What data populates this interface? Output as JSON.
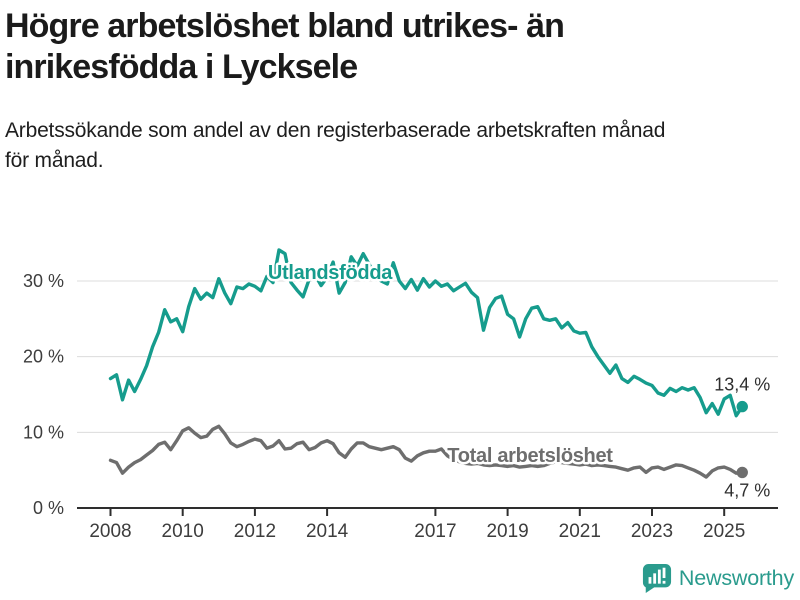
{
  "header": {
    "title_lines": [
      "Högre arbetslöshet bland utrikes- än",
      "inrikesfödda i Lycksele"
    ],
    "subtitle_lines": [
      "Arbetssökande som andel av den registerbaserade arbetskraften månad",
      "för månad."
    ]
  },
  "chart_data": {
    "type": "line",
    "title": "Högre arbetslöshet bland utrikes- än inrikesfödda i Lycksele",
    "subtitle": "Arbetssökande som andel av den registerbaserade arbetskraften månad för månad.",
    "unit": "percent",
    "grid": "horizontal",
    "legend_position": "inline-labels",
    "x_start_year": 2008,
    "x_step_years": 0.1666667,
    "x_end_year": 2025.5,
    "x_tick_years": [
      2008,
      2010,
      2012,
      2014,
      2017,
      2019,
      2021,
      2023,
      2025
    ],
    "x_tick_labels": [
      "2008",
      "2010",
      "2012",
      "2014",
      "2017",
      "2019",
      "2021",
      "2023",
      "2025"
    ],
    "y_ticks": [
      0,
      10,
      20,
      30
    ],
    "y_tick_labels": [
      "0 %",
      "10 %",
      "20 %",
      "30 %"
    ],
    "ylim": [
      0,
      35
    ],
    "colors": {
      "axis": "#2e2e2e",
      "gridline": "#dcdcdc",
      "tick_text": "#3d3d3d",
      "value_text": "#2e2e2e"
    },
    "series": [
      {
        "name": "Utlandsfödda",
        "color": "#169c8d",
        "end_label": "13,4 %",
        "end_value": 13.4,
        "end_label_position": "above",
        "label_at": {
          "year": 2014.08,
          "value": 31.2
        },
        "values": [
          17.1,
          17.6,
          14.3,
          16.9,
          15.4,
          17.0,
          18.8,
          21.3,
          23.2,
          26.2,
          24.6,
          25.0,
          23.3,
          26.6,
          29.0,
          27.6,
          28.4,
          27.8,
          30.3,
          28.4,
          27.0,
          29.2,
          29.0,
          29.6,
          29.3,
          28.7,
          30.6,
          29.8,
          34.1,
          33.6,
          29.8,
          28.8,
          27.9,
          30.2,
          30.8,
          29.4,
          30.5,
          32.5,
          28.4,
          29.8,
          33.2,
          32.0,
          33.6,
          32.2,
          30.6,
          30.0,
          29.6,
          32.4,
          30.0,
          29.0,
          30.2,
          28.8,
          30.3,
          29.2,
          30.0,
          29.3,
          29.6,
          28.7,
          29.2,
          29.7,
          28.5,
          27.8,
          23.5,
          26.5,
          27.7,
          28.0,
          25.6,
          25.0,
          22.6,
          25.0,
          26.4,
          26.6,
          25.0,
          24.8,
          25.0,
          23.8,
          24.5,
          23.4,
          23.1,
          23.2,
          21.3,
          20.0,
          18.9,
          17.8,
          18.9,
          17.1,
          16.6,
          17.4,
          17.0,
          16.5,
          16.2,
          15.2,
          14.9,
          15.8,
          15.4,
          15.9,
          15.6,
          15.9,
          14.6,
          12.6,
          13.8,
          12.4,
          14.4,
          14.9,
          12.2,
          13.4
        ]
      },
      {
        "name": "Total arbetslöshet",
        "color": "#6e6e6e",
        "end_label": "4,7 %",
        "end_value": 4.7,
        "end_label_position": "below",
        "label_at": {
          "year": 2019.62,
          "value": 7.0
        },
        "values": [
          6.3,
          6.0,
          4.6,
          5.4,
          6.0,
          6.4,
          7.0,
          7.6,
          8.4,
          8.7,
          7.7,
          8.9,
          10.2,
          10.6,
          9.9,
          9.3,
          9.5,
          10.4,
          10.8,
          9.8,
          8.6,
          8.1,
          8.4,
          8.8,
          9.1,
          8.9,
          7.9,
          8.2,
          8.9,
          7.8,
          7.9,
          8.5,
          8.7,
          7.7,
          8.0,
          8.6,
          8.9,
          8.5,
          7.3,
          6.7,
          7.8,
          8.6,
          8.6,
          8.1,
          7.9,
          7.7,
          7.9,
          8.1,
          7.7,
          6.6,
          6.2,
          6.9,
          7.3,
          7.5,
          7.5,
          7.8,
          6.9,
          6.4,
          6.1,
          5.9,
          5.8,
          5.9,
          5.7,
          5.6,
          5.7,
          5.6,
          5.5,
          5.6,
          5.4,
          5.5,
          5.6,
          5.5,
          5.6,
          5.9,
          6.1,
          6.0,
          5.9,
          5.8,
          5.7,
          5.8,
          5.6,
          5.7,
          5.6,
          5.5,
          5.4,
          5.2,
          5.0,
          5.3,
          5.4,
          4.7,
          5.3,
          5.4,
          5.1,
          5.4,
          5.7,
          5.6,
          5.3,
          5.0,
          4.6,
          4.1,
          4.9,
          5.3,
          5.4,
          5.1,
          4.6,
          4.7
        ]
      }
    ]
  },
  "footer": {
    "brand": "Newsworthy",
    "brand_color": "#2a9b8d",
    "icon": "newsworthy-chart-bubble-icon"
  }
}
